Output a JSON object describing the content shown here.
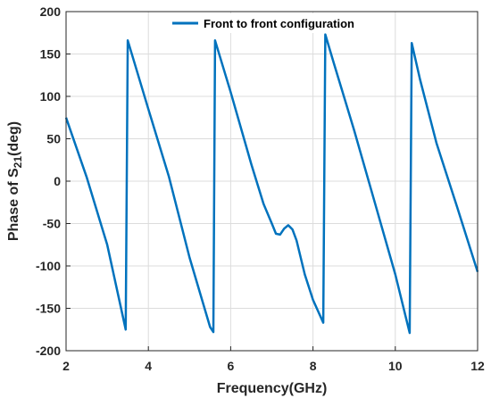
{
  "chart_data": {
    "type": "line",
    "title": "",
    "xlabel": "Frequency(GHz)",
    "ylabel_parts": {
      "prefix": "Phase of S",
      "sub": "21",
      "suffix": "(deg)"
    },
    "xlim": [
      2,
      12
    ],
    "ylim": [
      -200,
      200
    ],
    "xticks": [
      2,
      4,
      6,
      8,
      10,
      12
    ],
    "yticks": [
      -200,
      -150,
      -100,
      -50,
      0,
      50,
      100,
      150,
      200
    ],
    "grid": true,
    "legend_position": "top",
    "colors": {
      "series": "#0072BD",
      "grid": "#dcdcdc",
      "axis": "#262626"
    },
    "series": [
      {
        "name": "Front to front configuration",
        "x": [
          2.0,
          2.5,
          3.0,
          3.45,
          3.5,
          4.0,
          4.5,
          5.0,
          5.5,
          5.58,
          5.62,
          6.0,
          6.5,
          6.8,
          7.0,
          7.1,
          7.2,
          7.3,
          7.4,
          7.5,
          7.6,
          7.8,
          8.0,
          8.25,
          8.3,
          8.5,
          9.0,
          9.5,
          10.0,
          10.35,
          10.4,
          10.6,
          11.0,
          11.5,
          12.0
        ],
        "y": [
          75,
          5,
          -75,
          -175,
          166,
          85,
          5,
          -90,
          -172,
          -178,
          166,
          105,
          20,
          -27,
          -50,
          -62,
          -63,
          -56,
          -52,
          -57,
          -70,
          -110,
          -140,
          -167,
          173,
          140,
          60,
          -25,
          -110,
          -179,
          163,
          120,
          45,
          -30,
          -107
        ]
      }
    ]
  }
}
